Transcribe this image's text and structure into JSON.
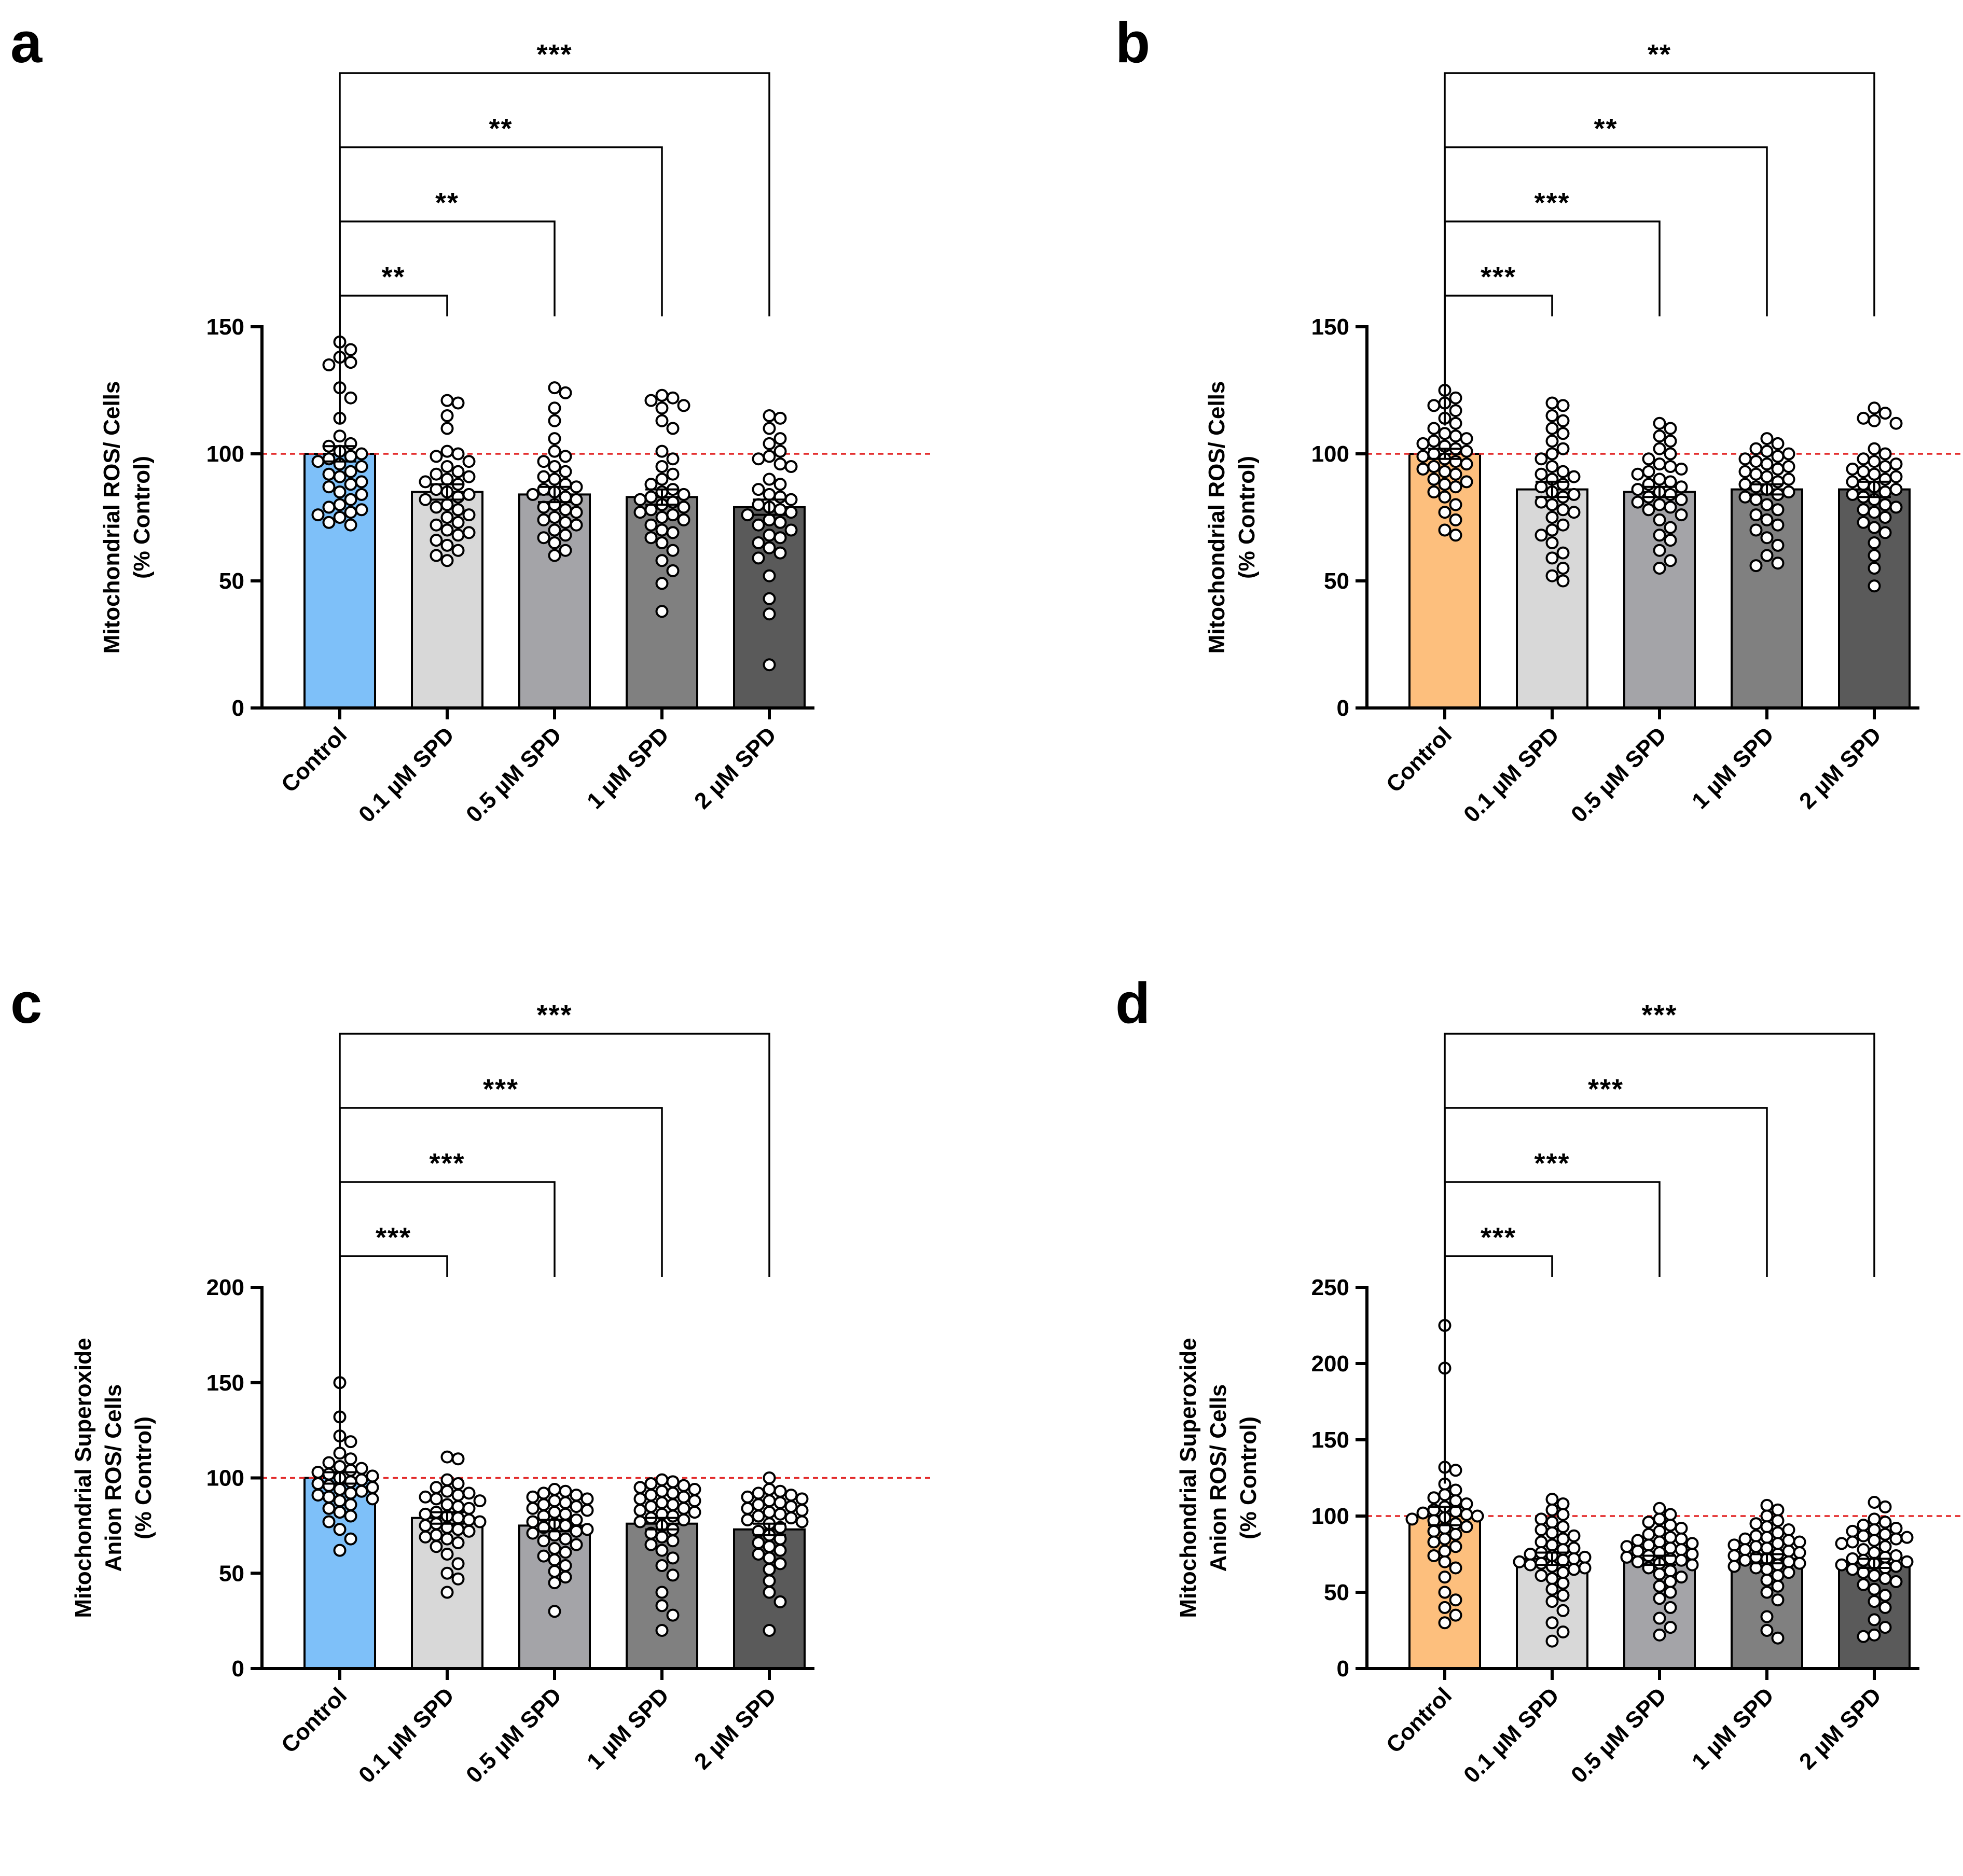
{
  "figure_title": "",
  "chart_data": [
    {
      "panel": "a",
      "type": "bar",
      "ylabel_lines": [
        "Mitochondrial ROS/ Cells",
        "(% Control)"
      ],
      "categories": [
        "Control",
        "0.1 µM SPD",
        "0.5 µM SPD",
        "1 µM SPD",
        "2 µM SPD"
      ],
      "values": [
        100,
        85,
        84,
        83,
        79
      ],
      "errors": [
        3,
        3,
        3,
        3,
        3
      ],
      "ylim": [
        0,
        150
      ],
      "yticks": [
        0,
        50,
        100,
        150
      ],
      "ref_line": 100,
      "bar_colors": [
        "#7ec0f9",
        "#d8d8d8",
        "#a4a4a8",
        "#808080",
        "#5a5a5a"
      ],
      "points": [
        [
          144,
          141,
          138,
          136,
          135,
          126,
          122,
          114,
          107,
          104,
          103,
          101,
          100,
          99,
          98,
          97,
          96,
          95,
          93,
          92,
          91,
          89,
          88,
          87,
          85,
          84,
          82,
          80,
          79,
          78,
          77,
          76,
          75,
          73,
          72
        ],
        [
          121,
          120,
          115,
          110,
          101,
          100,
          99,
          97,
          95,
          93,
          92,
          91,
          90,
          89,
          88,
          86,
          85,
          84,
          83,
          82,
          80,
          79,
          78,
          76,
          75,
          73,
          72,
          70,
          69,
          68,
          66,
          64,
          62,
          60,
          58
        ],
        [
          126,
          124,
          118,
          113,
          106,
          101,
          99,
          97,
          95,
          93,
          91,
          90,
          88,
          87,
          86,
          85,
          84,
          83,
          82,
          80,
          79,
          78,
          77,
          75,
          74,
          73,
          72,
          70,
          68,
          67,
          65,
          62,
          60
        ],
        [
          123,
          122,
          121,
          119,
          118,
          113,
          110,
          101,
          98,
          95,
          92,
          90,
          88,
          86,
          85,
          84,
          83,
          82,
          81,
          80,
          79,
          78,
          77,
          76,
          75,
          74,
          72,
          70,
          69,
          67,
          65,
          62,
          58,
          54,
          49,
          38
        ],
        [
          115,
          114,
          110,
          106,
          104,
          101,
          99,
          98,
          96,
          95,
          90,
          88,
          86,
          84,
          83,
          82,
          80,
          79,
          78,
          77,
          76,
          74,
          73,
          72,
          70,
          68,
          67,
          65,
          63,
          61,
          59,
          52,
          43,
          37,
          17
        ]
      ],
      "comparisons": [
        {
          "from": 0,
          "to": 1,
          "label": "**"
        },
        {
          "from": 0,
          "to": 2,
          "label": "**"
        },
        {
          "from": 0,
          "to": 3,
          "label": "**"
        },
        {
          "from": 0,
          "to": 4,
          "label": "***"
        }
      ]
    },
    {
      "panel": "b",
      "type": "bar",
      "ylabel_lines": [
        "Mitochondrial ROS/ Cells",
        "(% Control)"
      ],
      "categories": [
        "Control",
        "0.1 µM SPD",
        "0.5 µM SPD",
        "1 µM SPD",
        "2 µM SPD"
      ],
      "values": [
        100,
        86,
        85,
        86,
        86
      ],
      "errors": [
        2,
        3,
        2,
        2,
        3
      ],
      "ylim": [
        0,
        150
      ],
      "yticks": [
        0,
        50,
        100,
        150
      ],
      "ref_line": 100,
      "bar_colors": [
        "#fdbf7d",
        "#d8d8d8",
        "#a4a4a8",
        "#808080",
        "#5a5a5a"
      ],
      "points": [
        [
          125,
          122,
          120,
          119,
          117,
          114,
          112,
          110,
          108,
          107,
          106,
          105,
          104,
          103,
          102,
          101,
          100,
          99,
          98,
          97,
          96,
          95,
          94,
          93,
          92,
          90,
          89,
          88,
          87,
          85,
          83,
          80,
          77,
          74,
          70,
          68
        ],
        [
          120,
          119,
          115,
          113,
          110,
          108,
          105,
          102,
          100,
          98,
          95,
          93,
          92,
          91,
          90,
          88,
          87,
          85,
          84,
          83,
          81,
          80,
          78,
          77,
          75,
          72,
          70,
          68,
          65,
          61,
          59,
          55,
          52,
          50
        ],
        [
          112,
          110,
          107,
          105,
          102,
          100,
          98,
          96,
          95,
          94,
          93,
          92,
          90,
          89,
          88,
          87,
          86,
          85,
          84,
          83,
          82,
          81,
          80,
          79,
          78,
          76,
          74,
          71,
          68,
          66,
          62,
          58,
          55
        ],
        [
          106,
          104,
          102,
          101,
          100,
          99,
          98,
          97,
          96,
          95,
          94,
          93,
          92,
          91,
          90,
          89,
          88,
          87,
          86,
          85,
          84,
          83,
          82,
          80,
          78,
          76,
          74,
          72,
          70,
          67,
          64,
          60,
          57,
          56
        ],
        [
          118,
          116,
          114,
          113,
          112,
          102,
          100,
          98,
          97,
          96,
          95,
          94,
          93,
          92,
          91,
          90,
          89,
          88,
          87,
          86,
          85,
          84,
          83,
          82,
          80,
          79,
          78,
          77,
          75,
          73,
          71,
          69,
          65,
          60,
          55,
          48
        ]
      ],
      "comparisons": [
        {
          "from": 0,
          "to": 1,
          "label": "***"
        },
        {
          "from": 0,
          "to": 2,
          "label": "***"
        },
        {
          "from": 0,
          "to": 3,
          "label": "**"
        },
        {
          "from": 0,
          "to": 4,
          "label": "**"
        }
      ]
    },
    {
      "panel": "c",
      "type": "bar",
      "ylabel_lines": [
        "Mitochondrial Superoxide",
        "Anion ROS/ Cells",
        "(% Control)"
      ],
      "categories": [
        "Control",
        "0.1 µM SPD",
        "0.5 µM SPD",
        "1 µM SPD",
        "2 µM SPD"
      ],
      "values": [
        100,
        79,
        75,
        76,
        73
      ],
      "errors": [
        3,
        3,
        3,
        3,
        3
      ],
      "ylim": [
        0,
        200
      ],
      "yticks": [
        0,
        50,
        100,
        150,
        200
      ],
      "ref_line": 100,
      "bar_colors": [
        "#7ec0f9",
        "#d8d8d8",
        "#a4a4a8",
        "#808080",
        "#5a5a5a"
      ],
      "points": [
        [
          150,
          132,
          122,
          119,
          113,
          110,
          108,
          106,
          105,
          104,
          103,
          102,
          101,
          100,
          99,
          98,
          97,
          96,
          95,
          94,
          93,
          92,
          91,
          90,
          89,
          88,
          86,
          84,
          82,
          80,
          77,
          73,
          68,
          62
        ],
        [
          111,
          110,
          99,
          97,
          95,
          93,
          92,
          91,
          90,
          89,
          88,
          86,
          85,
          84,
          82,
          81,
          80,
          79,
          78,
          77,
          76,
          75,
          74,
          73,
          72,
          70,
          69,
          68,
          66,
          64,
          60,
          55,
          50,
          47,
          40
        ],
        [
          94,
          93,
          92,
          91,
          90,
          89,
          88,
          87,
          86,
          85,
          84,
          83,
          82,
          81,
          80,
          78,
          77,
          76,
          75,
          74,
          73,
          72,
          71,
          70,
          68,
          67,
          65,
          63,
          61,
          59,
          57,
          54,
          51,
          48,
          45,
          30
        ],
        [
          99,
          98,
          97,
          96,
          95,
          94,
          93,
          92,
          91,
          90,
          89,
          88,
          87,
          86,
          85,
          84,
          83,
          82,
          81,
          80,
          79,
          78,
          77,
          75,
          73,
          71,
          69,
          67,
          65,
          62,
          58,
          54,
          49,
          40,
          33,
          28,
          20
        ],
        [
          100,
          94,
          93,
          92,
          91,
          90,
          89,
          88,
          87,
          86,
          85,
          84,
          83,
          82,
          81,
          80,
          79,
          78,
          77,
          76,
          74,
          72,
          70,
          68,
          66,
          64,
          62,
          60,
          58,
          55,
          52,
          46,
          40,
          35,
          20
        ]
      ],
      "comparisons": [
        {
          "from": 0,
          "to": 1,
          "label": "***"
        },
        {
          "from": 0,
          "to": 2,
          "label": "***"
        },
        {
          "from": 0,
          "to": 3,
          "label": "***"
        },
        {
          "from": 0,
          "to": 4,
          "label": "***"
        }
      ]
    },
    {
      "panel": "d",
      "type": "bar",
      "ylabel_lines": [
        "Mitochondrial Superoxide",
        "Anion ROS/ Cells",
        "(% Control)"
      ],
      "categories": [
        "Control",
        "0.1 µM SPD",
        "0.5 µM SPD",
        "1 µM SPD",
        "2 µM SPD"
      ],
      "values": [
        100,
        72,
        71,
        72,
        69
      ],
      "errors": [
        6,
        4,
        3,
        3,
        3
      ],
      "ylim": [
        0,
        250
      ],
      "yticks": [
        0,
        50,
        100,
        150,
        200,
        250
      ],
      "ref_line": 100,
      "bar_colors": [
        "#fdbf7d",
        "#d8d8d8",
        "#a4a4a8",
        "#808080",
        "#5a5a5a"
      ],
      "points": [
        [
          225,
          197,
          132,
          130,
          121,
          117,
          114,
          112,
          110,
          108,
          106,
          104,
          103,
          102,
          101,
          100,
          99,
          98,
          97,
          95,
          93,
          92,
          90,
          88,
          85,
          83,
          80,
          77,
          74,
          70,
          66,
          60,
          50,
          45,
          40,
          35,
          30
        ],
        [
          111,
          108,
          104,
          101,
          98,
          96,
          93,
          91,
          89,
          87,
          85,
          83,
          81,
          79,
          78,
          76,
          75,
          74,
          73,
          72,
          71,
          70,
          69,
          68,
          67,
          66,
          65,
          63,
          61,
          59,
          56,
          52,
          48,
          44,
          38,
          30,
          24,
          18
        ],
        [
          105,
          101,
          98,
          96,
          94,
          92,
          90,
          88,
          86,
          85,
          84,
          83,
          82,
          81,
          80,
          79,
          78,
          77,
          76,
          75,
          74,
          73,
          72,
          71,
          70,
          69,
          68,
          66,
          64,
          62,
          60,
          57,
          54,
          50,
          46,
          40,
          33,
          27,
          22
        ],
        [
          107,
          104,
          100,
          97,
          95,
          93,
          91,
          89,
          87,
          86,
          85,
          84,
          83,
          82,
          81,
          80,
          79,
          78,
          77,
          76,
          75,
          74,
          73,
          72,
          71,
          70,
          69,
          68,
          67,
          66,
          65,
          63,
          61,
          58,
          54,
          50,
          45,
          34,
          25,
          20
        ],
        [
          109,
          106,
          98,
          96,
          94,
          92,
          91,
          90,
          88,
          87,
          86,
          85,
          84,
          83,
          82,
          80,
          78,
          76,
          74,
          73,
          72,
          71,
          70,
          69,
          68,
          67,
          66,
          65,
          63,
          61,
          59,
          57,
          55,
          52,
          48,
          44,
          40,
          32,
          27,
          22,
          21
        ]
      ],
      "comparisons": [
        {
          "from": 0,
          "to": 1,
          "label": "***"
        },
        {
          "from": 0,
          "to": 2,
          "label": "***"
        },
        {
          "from": 0,
          "to": 3,
          "label": "***"
        },
        {
          "from": 0,
          "to": 4,
          "label": "***"
        }
      ]
    }
  ]
}
